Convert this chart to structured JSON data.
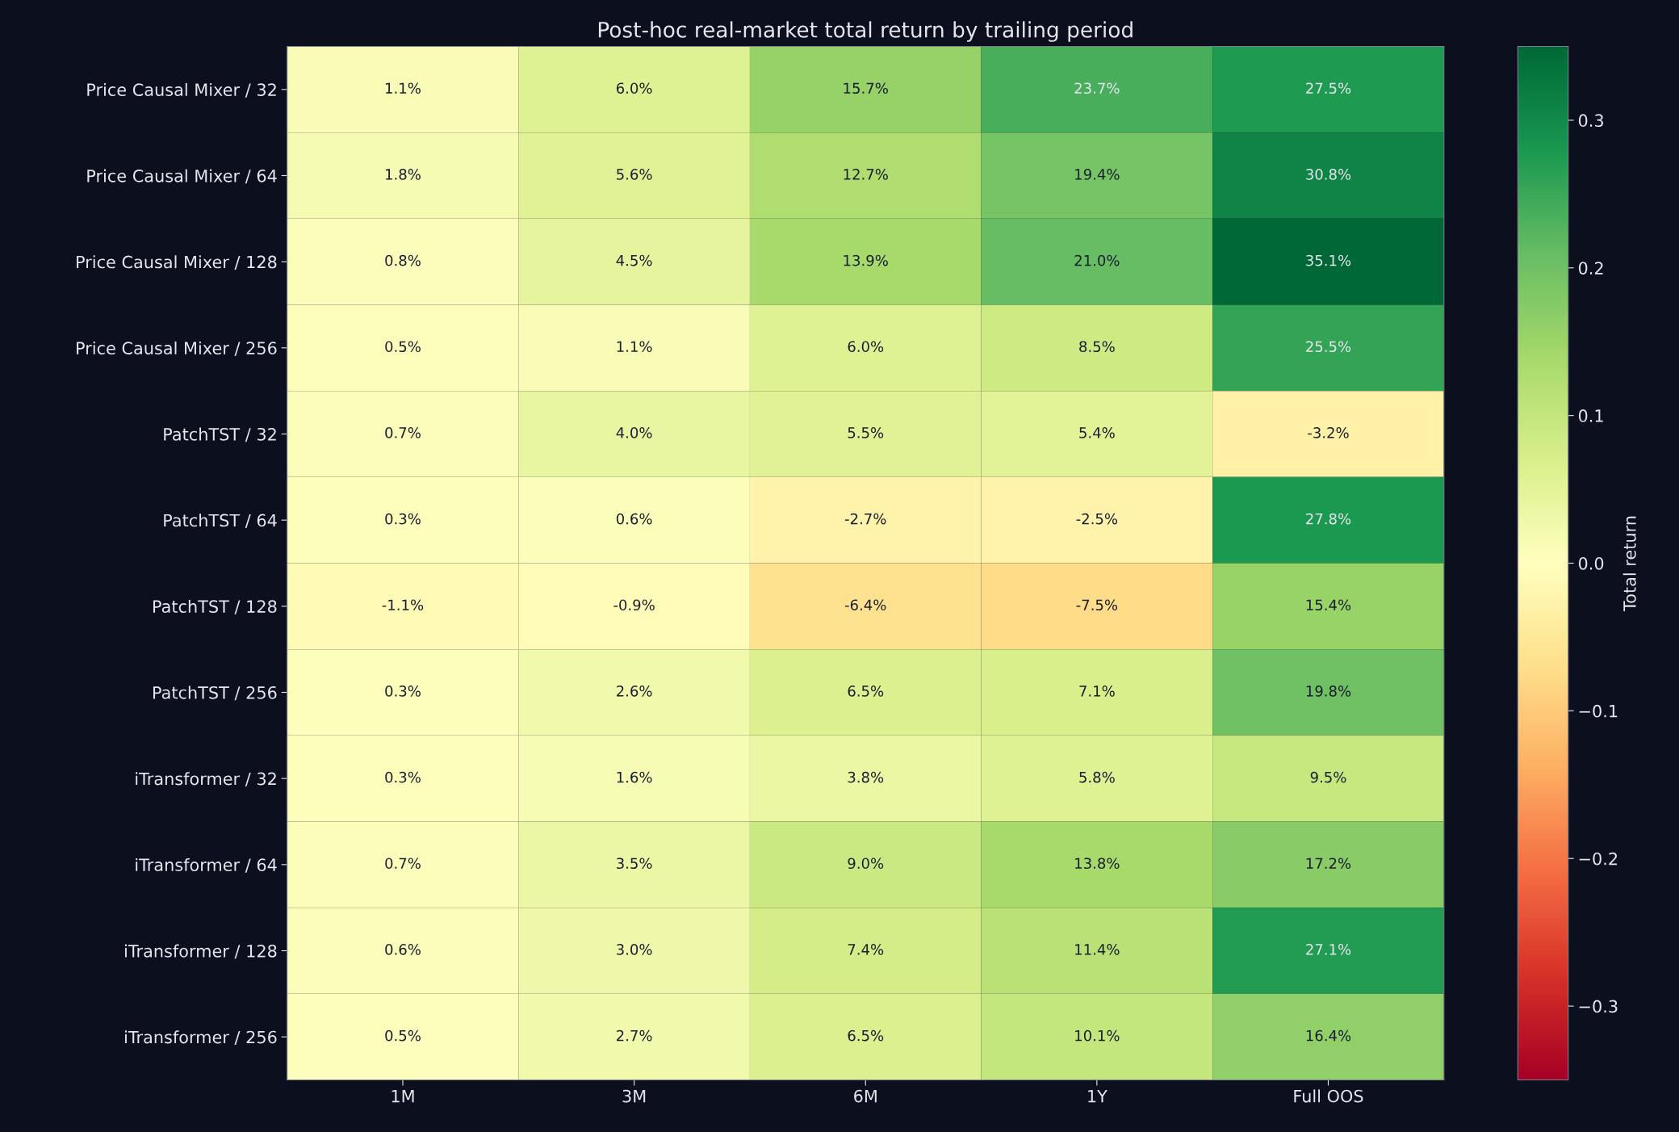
{
  "chart_data": {
    "type": "heatmap",
    "title": "Post-hoc real-market total return by trailing period",
    "clabel": "Total return",
    "categories": [
      "1M",
      "3M",
      "6M",
      "1Y",
      "Full OOS"
    ],
    "y_categories": [
      "Price Causal Mixer / 32",
      "Price Causal Mixer / 64",
      "Price Causal Mixer / 128",
      "Price Causal Mixer / 256",
      "PatchTST / 32",
      "PatchTST / 64",
      "PatchTST / 128",
      "PatchTST / 256",
      "iTransformer / 32",
      "iTransformer / 64",
      "iTransformer / 128",
      "iTransformer / 256"
    ],
    "cells": [
      [
        0.011,
        0.06,
        0.157,
        0.237,
        0.275
      ],
      [
        0.018,
        0.056,
        0.127,
        0.194,
        0.308
      ],
      [
        0.008,
        0.045,
        0.139,
        0.21,
        0.351
      ],
      [
        0.005,
        0.011,
        0.06,
        0.085,
        0.255
      ],
      [
        0.007,
        0.04,
        0.055,
        0.054,
        -0.032
      ],
      [
        0.003,
        0.006,
        -0.027,
        -0.025,
        0.278
      ],
      [
        -0.011,
        -0.009,
        -0.064,
        -0.075,
        0.154
      ],
      [
        0.003,
        0.026,
        0.065,
        0.071,
        0.198
      ],
      [
        0.003,
        0.016,
        0.038,
        0.058,
        0.095
      ],
      [
        0.007,
        0.035,
        0.09,
        0.138,
        0.172
      ],
      [
        0.006,
        0.03,
        0.074,
        0.114,
        0.271
      ],
      [
        0.005,
        0.027,
        0.065,
        0.101,
        0.164
      ]
    ],
    "cell_labels": [
      [
        "1.1%",
        "6.0%",
        "15.7%",
        "23.7%",
        "27.5%"
      ],
      [
        "1.8%",
        "5.6%",
        "12.7%",
        "19.4%",
        "30.8%"
      ],
      [
        "0.8%",
        "4.5%",
        "13.9%",
        "21.0%",
        "35.1%"
      ],
      [
        "0.5%",
        "1.1%",
        "6.0%",
        "8.5%",
        "25.5%"
      ],
      [
        "0.7%",
        "4.0%",
        "5.5%",
        "5.4%",
        "-3.2%"
      ],
      [
        "0.3%",
        "0.6%",
        "-2.7%",
        "-2.5%",
        "27.8%"
      ],
      [
        "-1.1%",
        "-0.9%",
        "-6.4%",
        "-7.5%",
        "15.4%"
      ],
      [
        "0.3%",
        "2.6%",
        "6.5%",
        "7.1%",
        "19.8%"
      ],
      [
        "0.3%",
        "1.6%",
        "3.8%",
        "5.8%",
        "9.5%"
      ],
      [
        "0.7%",
        "3.5%",
        "9.0%",
        "13.8%",
        "17.2%"
      ],
      [
        "0.6%",
        "3.0%",
        "7.4%",
        "11.4%",
        "27.1%"
      ],
      [
        "0.5%",
        "2.7%",
        "6.5%",
        "10.1%",
        "16.4%"
      ]
    ],
    "clim": [
      -0.35,
      0.35
    ],
    "cticks": [
      {
        "value": -0.3,
        "label": "−0.3"
      },
      {
        "value": -0.2,
        "label": "−0.2"
      },
      {
        "value": -0.1,
        "label": "−0.1"
      },
      {
        "value": 0.0,
        "label": "0.0"
      },
      {
        "value": 0.1,
        "label": "0.1"
      },
      {
        "value": 0.2,
        "label": "0.2"
      },
      {
        "value": 0.3,
        "label": "0.3"
      }
    ]
  }
}
